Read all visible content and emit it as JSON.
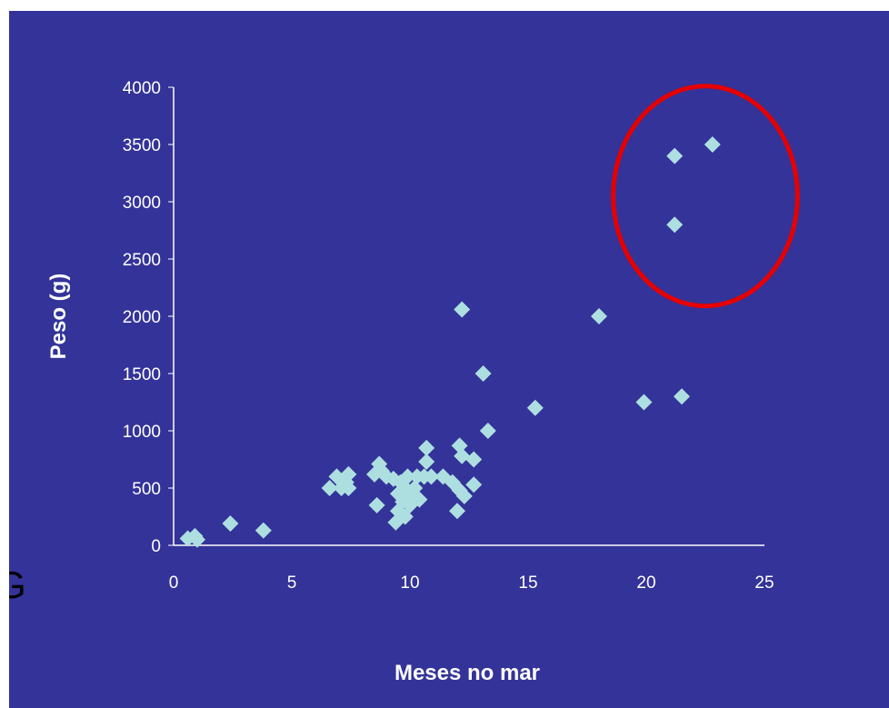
{
  "stray_text": "G",
  "chart_data": {
    "type": "scatter",
    "title": "",
    "xlabel": "Meses no mar",
    "ylabel": "Peso (g)",
    "xlim": [
      0,
      25
    ],
    "ylim": [
      0,
      4000
    ],
    "xticks": [
      "0",
      "5",
      "10",
      "15",
      "20",
      "25"
    ],
    "yticks": [
      "0",
      "500",
      "1000",
      "1500",
      "2000",
      "2500",
      "3000",
      "3500",
      "4000"
    ],
    "grid": false,
    "legend": "none",
    "marker": "diamond",
    "colors": {
      "background": "#333399",
      "marker": "#aedfe0",
      "axis": "#ffffff",
      "highlight": "#e60000"
    },
    "highlight": {
      "shape": "ellipse",
      "center": [
        22.5,
        3050
      ],
      "radius": [
        3.9,
        960
      ]
    },
    "points": [
      {
        "x": 0.6,
        "y": 60
      },
      {
        "x": 0.9,
        "y": 80
      },
      {
        "x": 1.0,
        "y": 50
      },
      {
        "x": 2.4,
        "y": 190
      },
      {
        "x": 3.8,
        "y": 130
      },
      {
        "x": 6.6,
        "y": 500
      },
      {
        "x": 6.9,
        "y": 600
      },
      {
        "x": 7.1,
        "y": 500
      },
      {
        "x": 7.3,
        "y": 550
      },
      {
        "x": 7.4,
        "y": 620
      },
      {
        "x": 7.4,
        "y": 500
      },
      {
        "x": 8.5,
        "y": 620
      },
      {
        "x": 8.6,
        "y": 350
      },
      {
        "x": 8.7,
        "y": 710
      },
      {
        "x": 8.8,
        "y": 650
      },
      {
        "x": 9.0,
        "y": 600
      },
      {
        "x": 9.3,
        "y": 580
      },
      {
        "x": 9.4,
        "y": 200
      },
      {
        "x": 9.5,
        "y": 300
      },
      {
        "x": 9.5,
        "y": 450
      },
      {
        "x": 9.6,
        "y": 550
      },
      {
        "x": 9.7,
        "y": 380
      },
      {
        "x": 9.8,
        "y": 500
      },
      {
        "x": 9.8,
        "y": 250
      },
      {
        "x": 9.9,
        "y": 600
      },
      {
        "x": 10.0,
        "y": 420
      },
      {
        "x": 10.0,
        "y": 350
      },
      {
        "x": 10.2,
        "y": 500
      },
      {
        "x": 10.3,
        "y": 600
      },
      {
        "x": 10.4,
        "y": 400
      },
      {
        "x": 10.6,
        "y": 600
      },
      {
        "x": 10.7,
        "y": 850
      },
      {
        "x": 10.7,
        "y": 730
      },
      {
        "x": 10.9,
        "y": 600
      },
      {
        "x": 11.4,
        "y": 600
      },
      {
        "x": 11.8,
        "y": 550
      },
      {
        "x": 12.0,
        "y": 300
      },
      {
        "x": 12.1,
        "y": 870
      },
      {
        "x": 12.1,
        "y": 480
      },
      {
        "x": 12.2,
        "y": 780
      },
      {
        "x": 12.2,
        "y": 2060
      },
      {
        "x": 12.3,
        "y": 430
      },
      {
        "x": 12.7,
        "y": 750
      },
      {
        "x": 12.7,
        "y": 530
      },
      {
        "x": 13.1,
        "y": 1500
      },
      {
        "x": 13.3,
        "y": 1000
      },
      {
        "x": 15.3,
        "y": 1200
      },
      {
        "x": 18.0,
        "y": 2000
      },
      {
        "x": 19.9,
        "y": 1250
      },
      {
        "x": 21.2,
        "y": 3400
      },
      {
        "x": 21.2,
        "y": 2800
      },
      {
        "x": 21.5,
        "y": 1300
      },
      {
        "x": 22.8,
        "y": 3500
      }
    ]
  }
}
